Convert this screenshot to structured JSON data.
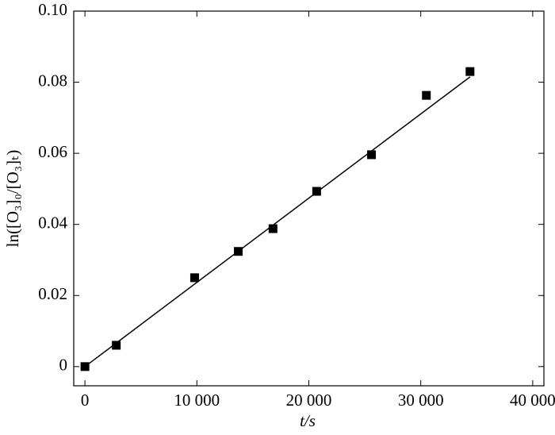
{
  "chart_data": {
    "type": "scatter",
    "x_label": "t/s",
    "y_label": "ln([O₃]₀/[O₃]ₜ)",
    "series": [
      {
        "type": "scatter",
        "color": "#000000",
        "x": [
          0,
          2800,
          9800,
          13700,
          16800,
          20700,
          25600,
          30500,
          34400
        ],
        "values": [
          0,
          0.006,
          0.025,
          0.0324,
          0.0388,
          0.0493,
          0.0596,
          0.0763,
          0.083
        ]
      },
      {
        "type": "line",
        "color": "#000000",
        "x": [
          0,
          34400
        ],
        "values": [
          0,
          0.0815
        ]
      }
    ],
    "xlim": [
      -1000,
      41000
    ],
    "xticks": [
      0,
      {
        "value": 10000,
        "label": "10 000"
      },
      {
        "value": 20000,
        "label": "20 000"
      },
      {
        "value": 30000,
        "label": "30 000"
      },
      {
        "value": 40000,
        "label": "40 000"
      }
    ],
    "ylim": [
      -0.0054,
      0.1
    ],
    "yticks": [
      0,
      0.02,
      0.04,
      0.06,
      0.08,
      {
        "value": 0.1,
        "label": "0.10"
      }
    ],
    "grid": false
  }
}
